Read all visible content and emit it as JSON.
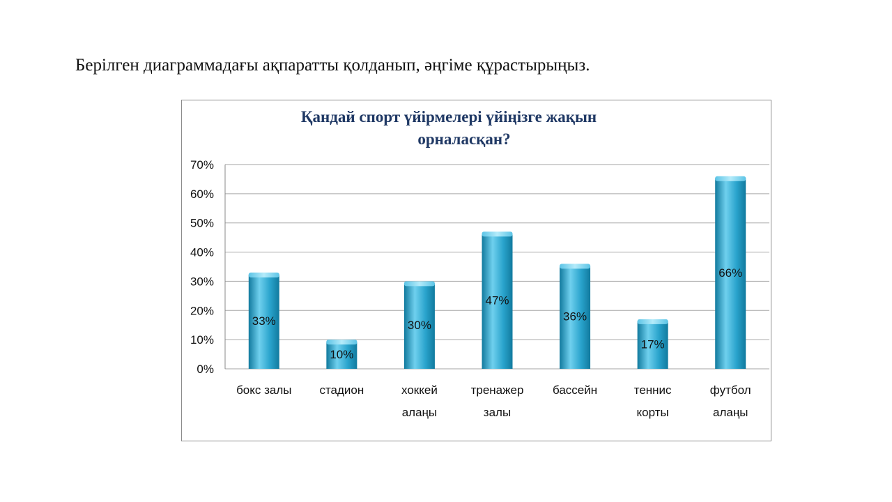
{
  "instruction": "Берілген диаграммадағы ақпаратты қолданып, әңгіме  құрастырыңыз.",
  "chart_data": {
    "type": "bar",
    "title": "Қандай спорт үйірмелері үйіңізге жақын орналасқан?",
    "title_lines": [
      "Қандай спорт үйірмелері үйіңізге жақын",
      "орналасқан?"
    ],
    "categories": [
      [
        "бокс залы"
      ],
      [
        "стадион"
      ],
      [
        "хоккей",
        "алаңы"
      ],
      [
        "тренажер",
        "залы"
      ],
      [
        "бассейн"
      ],
      [
        "теннис",
        "корты"
      ],
      [
        "футбол",
        "алаңы"
      ]
    ],
    "values": [
      33,
      10,
      30,
      47,
      36,
      17,
      66
    ],
    "data_labels": [
      "33%",
      "10%",
      "30%",
      "47%",
      "36%",
      "17%",
      "66%"
    ],
    "ylim": [
      0,
      70
    ],
    "yticks": [
      "0%",
      "10%",
      "20%",
      "30%",
      "40%",
      "50%",
      "60%",
      "70%"
    ],
    "xlabel": "",
    "ylabel": "",
    "grid": true,
    "legend": "none",
    "colors": {
      "bar": "#29a3cc",
      "bar_light": "#6fd0ee",
      "bar_dark": "#117a9e",
      "title": "#1f3864",
      "grid": "#a6a6a6"
    }
  }
}
